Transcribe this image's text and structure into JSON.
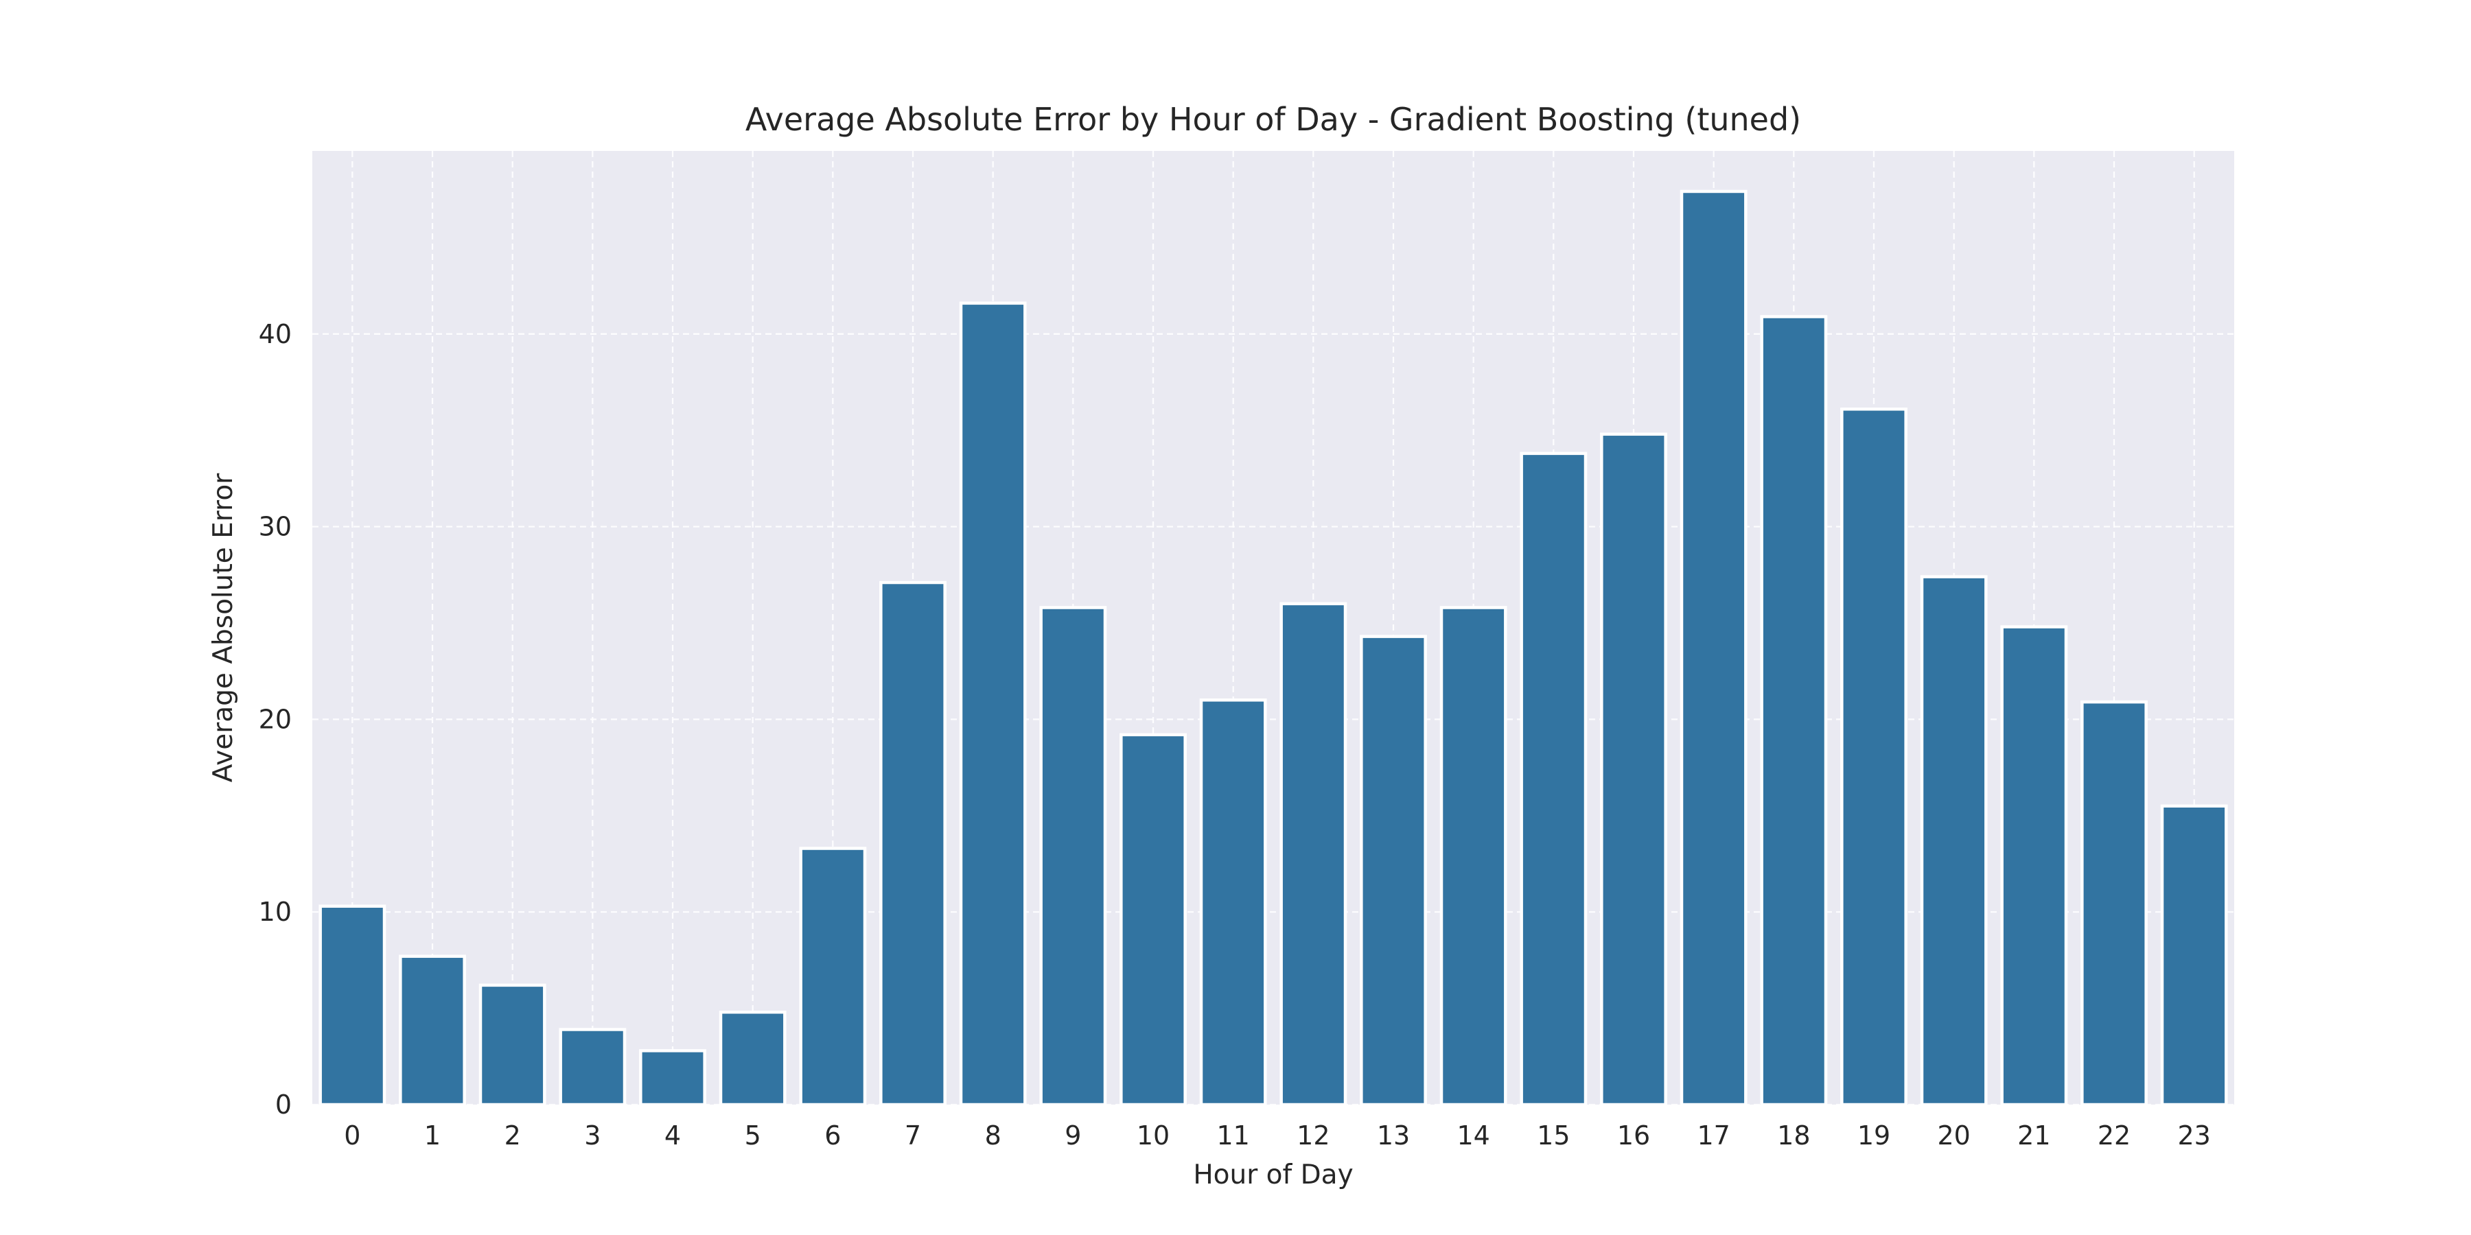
{
  "chart_data": {
    "type": "bar",
    "title": "Average Absolute Error by Hour of Day - Gradient Boosting (tuned)",
    "xlabel": "Hour of Day",
    "ylabel": "Average Absolute Error",
    "categories": [
      "0",
      "1",
      "2",
      "3",
      "4",
      "5",
      "6",
      "7",
      "8",
      "9",
      "10",
      "11",
      "12",
      "13",
      "14",
      "15",
      "16",
      "17",
      "18",
      "19",
      "20",
      "21",
      "22",
      "23"
    ],
    "values": [
      10.3,
      7.7,
      6.2,
      3.9,
      2.8,
      4.8,
      13.3,
      27.1,
      41.6,
      25.8,
      19.2,
      21.0,
      26.0,
      24.3,
      25.8,
      33.8,
      34.8,
      47.4,
      40.9,
      36.1,
      27.4,
      24.8,
      20.9,
      15.5
    ],
    "ylim": [
      0,
      49.5
    ],
    "yticks": [
      0,
      10,
      20,
      30,
      40
    ],
    "grid": true,
    "bar_color": "#3274a1",
    "background_color": "#eaeaf2"
  }
}
